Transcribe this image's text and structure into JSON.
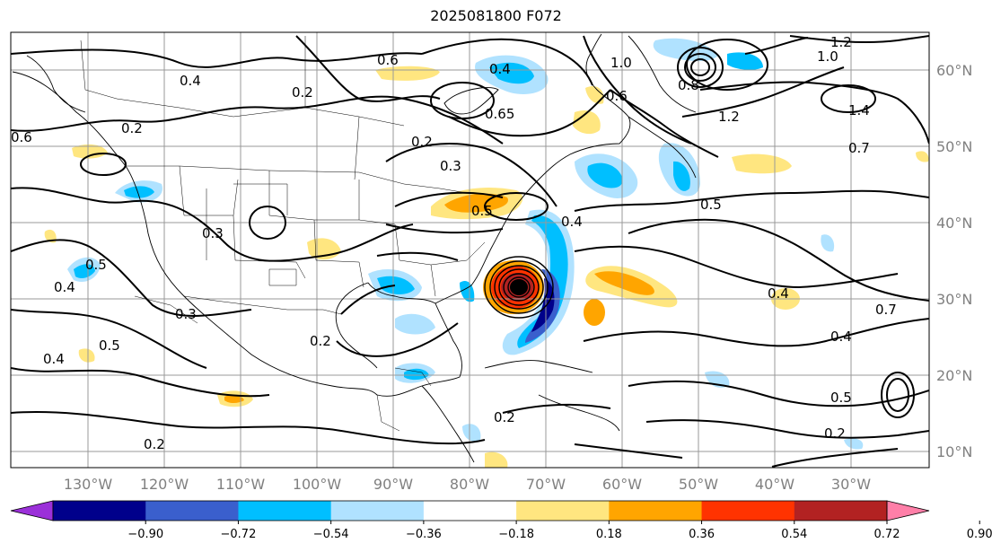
{
  "title": "2025081800 F072",
  "lon_labels": [
    "130°W",
    "120°W",
    "110°W",
    "100°W",
    "90°W",
    "80°W",
    "70°W",
    "60°W",
    "50°W",
    "40°W",
    "30°W"
  ],
  "lat_labels": [
    "60°N",
    "50°N",
    "40°N",
    "30°N",
    "20°N",
    "10°N"
  ],
  "colorbar": {
    "ticks": [
      "−0.90",
      "−0.72",
      "−0.54",
      "−0.36",
      "−0.18",
      "0.18",
      "0.36",
      "0.54",
      "0.72",
      "0.90"
    ],
    "colors": [
      "#9b30d9",
      "#00008b",
      "#3a5fcd",
      "#00bfff",
      "#b0e2ff",
      "#ffffff",
      "#ffe680",
      "#ffa500",
      "#ff3300",
      "#b22222",
      "#ff7fa8"
    ]
  },
  "contour_labels": [
    "0.6",
    "0.4",
    "0.2",
    "0.4",
    "0.65",
    "1.0",
    "1.2",
    "1.0",
    "1.4",
    "1.2",
    "0.8",
    "0.6",
    "0.5",
    "0.2",
    "0.3",
    "0.2",
    "0.7",
    "0.5",
    "0.4",
    "0.3",
    "0.5",
    "0.4",
    "0.3",
    "0.2",
    "0.4",
    "0.4",
    "0.5",
    "0.2",
    "0.4",
    "0.5",
    "0.2",
    "0.2",
    "0.7",
    "0.6"
  ]
}
